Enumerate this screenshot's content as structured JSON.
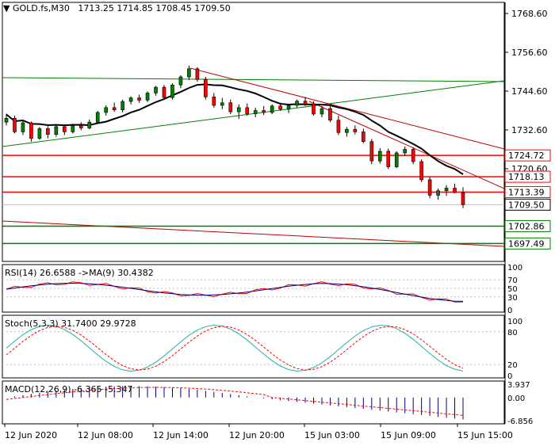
{
  "symbol_header": {
    "symbol": "GOLD.fs,M30",
    "ohlc": "1713.25 1714.85 1708.45 1709.50"
  },
  "price_axis": {
    "ticks": [
      "1768.60",
      "1756.60",
      "1744.60",
      "1732.60",
      "1720.60"
    ],
    "level_tags": [
      {
        "label": "1724.72",
        "value": 1724.72,
        "color": "#ff0000"
      },
      {
        "label": "1718.13",
        "value": 1718.13,
        "color": "#ff0000"
      },
      {
        "label": "1713.39",
        "value": 1713.39,
        "color": "#ff0000"
      },
      {
        "label": "1702.86",
        "value": 1702.86,
        "color": "#008000"
      },
      {
        "label": "1697.49",
        "value": 1697.49,
        "color": "#008000"
      }
    ],
    "current_price_label": "1709.50"
  },
  "time_axis": {
    "labels": [
      "12 Jun 2020",
      "12 Jun 08:00",
      "12 Jun 14:00",
      "12 Jun 20:00",
      "15 Jun 03:00",
      "15 Jun 09:00",
      "15 Jun 15:00"
    ]
  },
  "indicators": {
    "rsi": {
      "label": "RSI(14) 26.6588  ->MA(9) 30.4382",
      "ticks": [
        "100",
        "70",
        "50",
        "30",
        "0"
      ]
    },
    "stoch": {
      "label": "Stoch(5,3,3) 31.7400 29.9728",
      "ticks": [
        "100",
        "80",
        "20",
        "0"
      ]
    },
    "macd": {
      "label": "MACD(12,26,9) -6.365 -5.347",
      "ticks": [
        "3.937",
        "0.00",
        "-6.856"
      ]
    }
  },
  "colors": {
    "bull": "#008000",
    "bear": "#ff0000",
    "ma": "#000000",
    "trend_red": "#c00000",
    "trend_green": "#008000"
  },
  "chart_data": {
    "type": "candlestick",
    "y_range": [
      1693,
      1774
    ],
    "candles": [
      [
        1735.0,
        1737.6,
        1734.0,
        1736.2
      ],
      [
        1736.2,
        1737.0,
        1731.5,
        1732.0
      ],
      [
        1732.0,
        1735.5,
        1731.0,
        1734.8
      ],
      [
        1734.8,
        1735.2,
        1729.0,
        1730.0
      ],
      [
        1730.0,
        1733.5,
        1729.5,
        1733.0
      ],
      [
        1733.0,
        1733.8,
        1730.0,
        1731.2
      ],
      [
        1731.2,
        1734.0,
        1730.5,
        1733.6
      ],
      [
        1733.6,
        1734.2,
        1731.0,
        1732.0
      ],
      [
        1732.0,
        1734.5,
        1731.5,
        1734.0
      ],
      [
        1734.0,
        1735.0,
        1732.5,
        1733.2
      ],
      [
        1733.2,
        1735.8,
        1732.8,
        1735.0
      ],
      [
        1735.0,
        1738.5,
        1734.5,
        1738.0
      ],
      [
        1738.0,
        1740.2,
        1737.0,
        1739.5
      ],
      [
        1739.5,
        1741.0,
        1738.2,
        1738.8
      ],
      [
        1738.8,
        1742.0,
        1738.0,
        1741.4
      ],
      [
        1741.4,
        1743.0,
        1740.5,
        1742.5
      ],
      [
        1742.5,
        1743.5,
        1741.0,
        1741.8
      ],
      [
        1741.8,
        1744.5,
        1741.2,
        1744.0
      ],
      [
        1744.0,
        1746.2,
        1743.2,
        1745.8
      ],
      [
        1745.8,
        1746.5,
        1742.0,
        1742.6
      ],
      [
        1742.6,
        1747.0,
        1742.0,
        1746.5
      ],
      [
        1746.5,
        1749.5,
        1745.5,
        1749.0
      ],
      [
        1749.0,
        1752.5,
        1748.0,
        1751.5
      ],
      [
        1751.5,
        1752.0,
        1747.5,
        1748.2
      ],
      [
        1748.2,
        1749.0,
        1742.0,
        1742.8
      ],
      [
        1742.8,
        1744.0,
        1739.5,
        1740.2
      ],
      [
        1740.2,
        1742.5,
        1739.0,
        1741.0
      ],
      [
        1741.0,
        1742.0,
        1737.5,
        1738.2
      ],
      [
        1738.2,
        1740.5,
        1736.0,
        1739.5
      ],
      [
        1739.5,
        1740.8,
        1737.0,
        1737.6
      ],
      [
        1737.6,
        1739.5,
        1736.5,
        1738.6
      ],
      [
        1738.6,
        1740.0,
        1737.2,
        1738.0
      ],
      [
        1738.0,
        1740.5,
        1737.5,
        1740.0
      ],
      [
        1740.0,
        1741.0,
        1738.5,
        1739.0
      ],
      [
        1739.0,
        1740.6,
        1737.8,
        1740.2
      ],
      [
        1740.2,
        1742.0,
        1739.5,
        1741.5
      ],
      [
        1741.5,
        1742.8,
        1740.0,
        1740.6
      ],
      [
        1740.6,
        1741.5,
        1737.0,
        1737.5
      ],
      [
        1737.5,
        1740.0,
        1736.5,
        1739.2
      ],
      [
        1739.2,
        1740.0,
        1735.0,
        1735.6
      ],
      [
        1735.6,
        1737.0,
        1731.0,
        1731.8
      ],
      [
        1731.8,
        1733.5,
        1730.5,
        1732.8
      ],
      [
        1732.8,
        1734.0,
        1731.2,
        1732.0
      ],
      [
        1732.0,
        1733.0,
        1728.5,
        1729.0
      ],
      [
        1729.0,
        1729.8,
        1722.0,
        1723.0
      ],
      [
        1723.0,
        1727.0,
        1722.2,
        1726.0
      ],
      [
        1726.0,
        1726.8,
        1720.5,
        1721.2
      ],
      [
        1721.2,
        1726.0,
        1720.8,
        1725.5
      ],
      [
        1725.5,
        1727.5,
        1724.5,
        1726.6
      ],
      [
        1726.6,
        1727.2,
        1722.0,
        1722.8
      ],
      [
        1722.8,
        1723.5,
        1716.5,
        1717.2
      ],
      [
        1717.2,
        1718.0,
        1711.5,
        1712.4
      ],
      [
        1712.4,
        1714.5,
        1711.0,
        1713.8
      ],
      [
        1713.8,
        1715.5,
        1712.2,
        1714.6
      ],
      [
        1714.6,
        1716.0,
        1713.0,
        1713.25
      ],
      [
        1713.25,
        1714.85,
        1708.45,
        1709.5
      ]
    ]
  }
}
